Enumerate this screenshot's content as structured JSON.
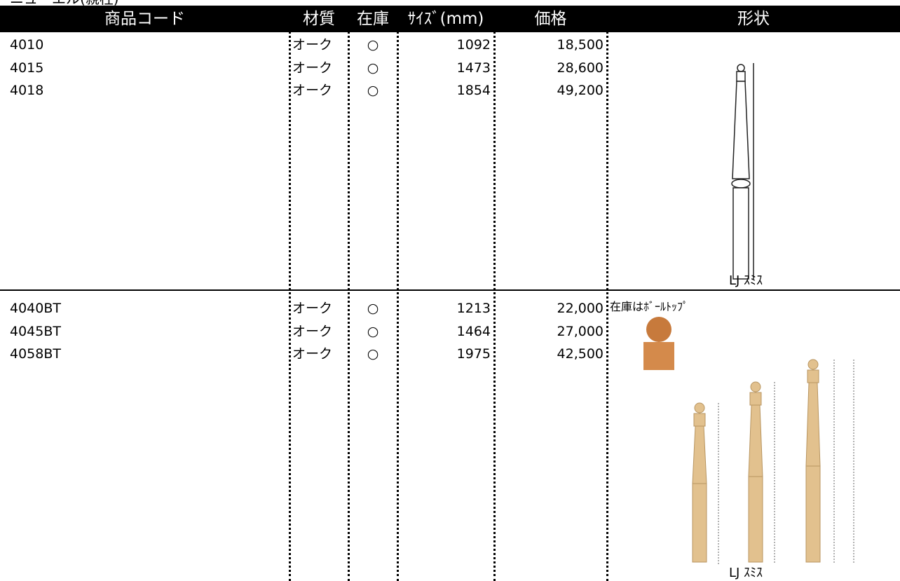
{
  "title": "ニューエル(親柱)",
  "table": {
    "header": [
      "商品コード",
      "材質",
      "在庫",
      "ｻｲｽﾞ(mm)",
      "価格",
      "形状"
    ],
    "sections": [
      {
        "rows": [
          [
            "4010",
            "オーク",
            "○",
            "1092",
            "18,500"
          ],
          [
            "4015",
            "オーク",
            "○",
            "1473",
            "28,600"
          ],
          [
            "4018",
            "オーク",
            "○",
            "1854",
            "49,200"
          ]
        ],
        "shape_caption": "LJ ｽﾐｽ"
      },
      {
        "rows": [
          [
            "4040BT",
            "オーク",
            "○",
            "1213",
            "22,000"
          ],
          [
            "4045BT",
            "オーク",
            "○",
            "1464",
            "27,000"
          ],
          [
            "4058BT",
            "オーク",
            "○",
            "1975",
            "42,500"
          ]
        ],
        "shape_note": "在庫はﾎﾞｰﾙﾄｯﾌﾟ",
        "shape_caption": "LJ ｽﾐｽ"
      }
    ]
  }
}
